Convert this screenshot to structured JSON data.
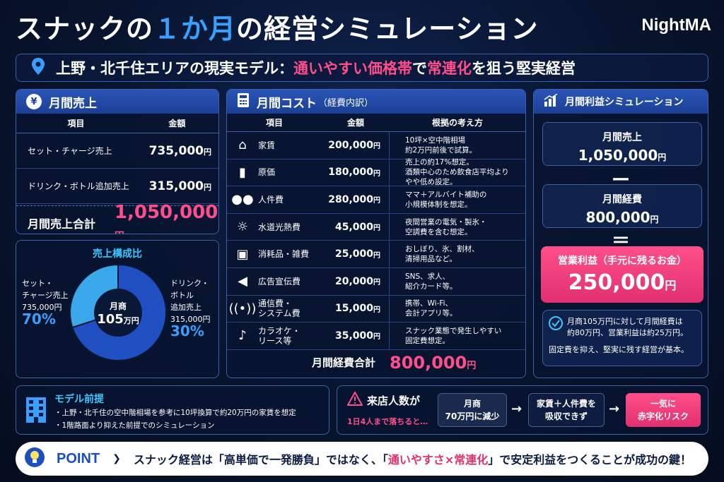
{
  "header": {
    "title_part1": "スナックの",
    "title_highlight": "１か月",
    "title_part2": "の経営シミュレーション",
    "brand": "NightMA"
  },
  "subtitle": {
    "part1": "上野・北千住エリアの現実モデル：",
    "pink1": "通いやすい価格帯",
    "part2": "で",
    "pink2": "常連化",
    "part3": "を狙う堅実経営"
  },
  "sales": {
    "heading": "月間売上",
    "col_item": "項目",
    "col_amount": "金額",
    "rows": [
      {
        "item": "セット・チャージ売上",
        "amount": "735,000",
        "unit": "円"
      },
      {
        "item": "ドリンク・ボトル追加売上",
        "amount": "315,000",
        "unit": "円"
      }
    ],
    "total_label": "月間売上合計",
    "total_value": "1,050,000",
    "total_unit": "円"
  },
  "composition": {
    "title": "売上構成比",
    "center_label": "月商",
    "center_value": "105",
    "center_unit": "万円",
    "left_label1": "セット・",
    "left_label2": "チャージ売上",
    "left_amount": "735,000円",
    "left_pct": "70%",
    "right_label1": "ドリンク・",
    "right_label2": "ボトル",
    "right_label3": "追加売上",
    "right_amount": "315,000円",
    "right_pct": "30%"
  },
  "chart_data": {
    "type": "pie",
    "categories": [
      "セット・チャージ売上",
      "ドリンク・ボトル追加売上"
    ],
    "values": [
      70,
      30
    ],
    "colors": [
      "#1f4fc0",
      "#3aa8ea"
    ]
  },
  "cost": {
    "heading": "月間コスト",
    "heading_sub": "（経費内訳）",
    "col_item": "項目",
    "col_amount": "金額",
    "col_basis": "根拠の考え方",
    "rows": [
      {
        "icon": "house-icon",
        "glyph": "⌂",
        "item": "家賃",
        "amount": "200,000",
        "unit": "円",
        "basis1": "10坪×空中階相場",
        "basis2": "約2万円前後で試算。",
        "basis3": ""
      },
      {
        "icon": "bottle-icon",
        "glyph": "▮",
        "item": "原価",
        "amount": "180,000",
        "unit": "円",
        "basis1": "売上の約17%想定。",
        "basis2": "酒類中心のため飲食店平均より",
        "basis3": "やや低め設定。"
      },
      {
        "icon": "people-icon",
        "glyph": "●●",
        "item": "人件費",
        "amount": "280,000",
        "unit": "円",
        "basis1": "ママ＋アルバイト補助の",
        "basis2": "小規模体制を想定。",
        "basis3": ""
      },
      {
        "icon": "bulb-icon",
        "glyph": "☼",
        "item": "水道光熱費",
        "amount": "45,000",
        "unit": "円",
        "basis1": "夜間営業の電気・製氷・",
        "basis2": "空調費を含む想定。",
        "basis3": ""
      },
      {
        "icon": "box-icon",
        "glyph": "▣",
        "item": "消耗品・雑費",
        "amount": "25,000",
        "unit": "円",
        "basis1": "おしぼり、氷、割材、",
        "basis2": "清掃用品など。",
        "basis3": ""
      },
      {
        "icon": "megaphone-icon",
        "glyph": "◀",
        "item": "広告宣伝費",
        "amount": "20,000",
        "unit": "円",
        "basis1": "SNS、求人、",
        "basis2": "紹介カード等。",
        "basis3": ""
      },
      {
        "icon": "antenna-icon",
        "glyph": "((•))",
        "item": "通信費・",
        "item2": "システム費",
        "amount": "15,000",
        "unit": "円",
        "basis1": "携帯、Wi-Fi、",
        "basis2": "会計アプリ等。",
        "basis3": ""
      },
      {
        "icon": "microphone-icon",
        "glyph": "♪",
        "item": "カラオケ・",
        "item2": "リース等",
        "amount": "35,000",
        "unit": "円",
        "basis1": "スナック業態で発生しやすい",
        "basis2": "固定費想定。",
        "basis3": ""
      }
    ],
    "total_label": "月間経費合計",
    "total_value": "800,000",
    "total_unit": "円"
  },
  "profit": {
    "heading": "月間利益シミュレーション",
    "sales_label": "月間売上",
    "sales_value": "1,050,000",
    "minus": "ー",
    "cost_label": "月間経費",
    "cost_value": "800,000",
    "equals": "＝",
    "profit_label": "営業利益（手元に残るお金）",
    "profit_value": "250,000",
    "unit": "円",
    "note1": "月商105万円に対して月間経費は",
    "note2": "約80万円、営業利益は約25万円。",
    "note3": "固定費を抑え、堅実に残す経営が基本。"
  },
  "model": {
    "heading": "モデル前提",
    "line1": "・上野・北千住の空中階相場を参考に10坪換算で約20万円の家賃を想定",
    "line2": "・1階路面より抑えた前提でのシミュレーション"
  },
  "risk": {
    "heading": "来店人数が",
    "sub": "1日4人まで落ちると…",
    "step1_a": "月商",
    "step1_b": "70万円に減少",
    "step2_a": "家賃＋人件費を",
    "step2_b": "吸収できず",
    "step3_a": "一気に",
    "step3_b": "赤字化リスク",
    "arrow": "→"
  },
  "point": {
    "label": "POINT",
    "msg1": "スナック経営は「高単価で一発勝負」ではなく、「",
    "pink": "通いやすさ×常連化",
    "msg2": "」で安定利益をつくることが成功の鍵！"
  }
}
